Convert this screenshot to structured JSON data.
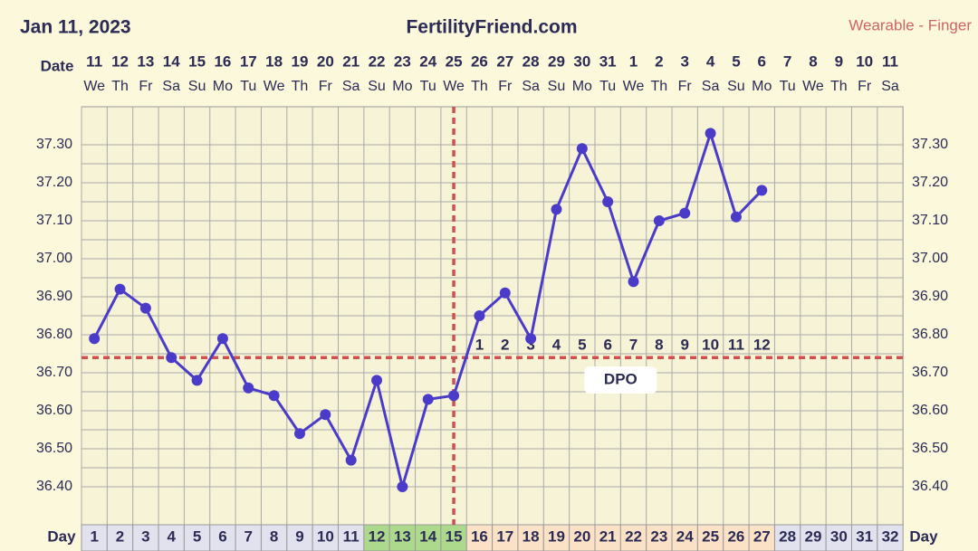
{
  "chart_data": {
    "type": "line",
    "title": "FertilityFriend.com",
    "date_text": "Jan 11, 2023",
    "source": "Wearable - Finger",
    "date_label": "Date",
    "x_label": "Day",
    "dates": [
      "11",
      "12",
      "13",
      "14",
      "15",
      "16",
      "17",
      "18",
      "19",
      "20",
      "21",
      "22",
      "23",
      "24",
      "25",
      "26",
      "27",
      "28",
      "29",
      "30",
      "31",
      "1",
      "2",
      "3",
      "4",
      "5",
      "6",
      "7",
      "8",
      "9",
      "10",
      "11"
    ],
    "weekdays": [
      "We",
      "Th",
      "Fr",
      "Sa",
      "Su",
      "Mo",
      "Tu",
      "We",
      "Th",
      "Fr",
      "Sa",
      "Su",
      "Mo",
      "Tu",
      "We",
      "Th",
      "Fr",
      "Sa",
      "Su",
      "Mo",
      "Tu",
      "We",
      "Th",
      "Fr",
      "Sa",
      "Su",
      "Mo",
      "Tu",
      "We",
      "Th",
      "Fr",
      "Sa"
    ],
    "categories": [
      1,
      2,
      3,
      4,
      5,
      6,
      7,
      8,
      9,
      10,
      11,
      12,
      13,
      14,
      15,
      16,
      17,
      18,
      19,
      20,
      21,
      22,
      23,
      24,
      25,
      26,
      27,
      28,
      29,
      30,
      31,
      32
    ],
    "values": [
      36.79,
      36.92,
      36.87,
      36.74,
      36.68,
      36.79,
      36.66,
      36.64,
      36.54,
      36.59,
      36.47,
      36.68,
      36.4,
      36.63,
      36.64,
      36.85,
      36.91,
      36.79,
      37.13,
      37.29,
      37.15,
      36.94,
      37.1,
      37.12,
      37.33,
      37.11,
      37.18,
      null,
      null,
      null,
      null,
      null
    ],
    "color": "#4a3cc8",
    "coverline": 36.74,
    "ovulation_day": 15,
    "dpo_label": "DPO",
    "dpo_labels": [
      1,
      2,
      3,
      4,
      5,
      6,
      7,
      8,
      9,
      10,
      11,
      12
    ],
    "ylim": [
      36.3,
      37.4
    ],
    "yticks": [
      {
        "value": 36.4,
        "label": "36.40"
      },
      {
        "value": 36.5,
        "label": "36.50"
      },
      {
        "value": 36.6,
        "label": "36.60"
      },
      {
        "value": 36.7,
        "label": "36.70"
      },
      {
        "value": 36.8,
        "label": "36.80"
      },
      {
        "value": 36.9,
        "label": "36.90"
      },
      {
        "value": 37.0,
        "label": "37.00"
      },
      {
        "value": 37.1,
        "label": "37.10"
      },
      {
        "value": 37.2,
        "label": "37.20"
      },
      {
        "value": 37.3,
        "label": "37.30"
      }
    ],
    "grid": true
  }
}
